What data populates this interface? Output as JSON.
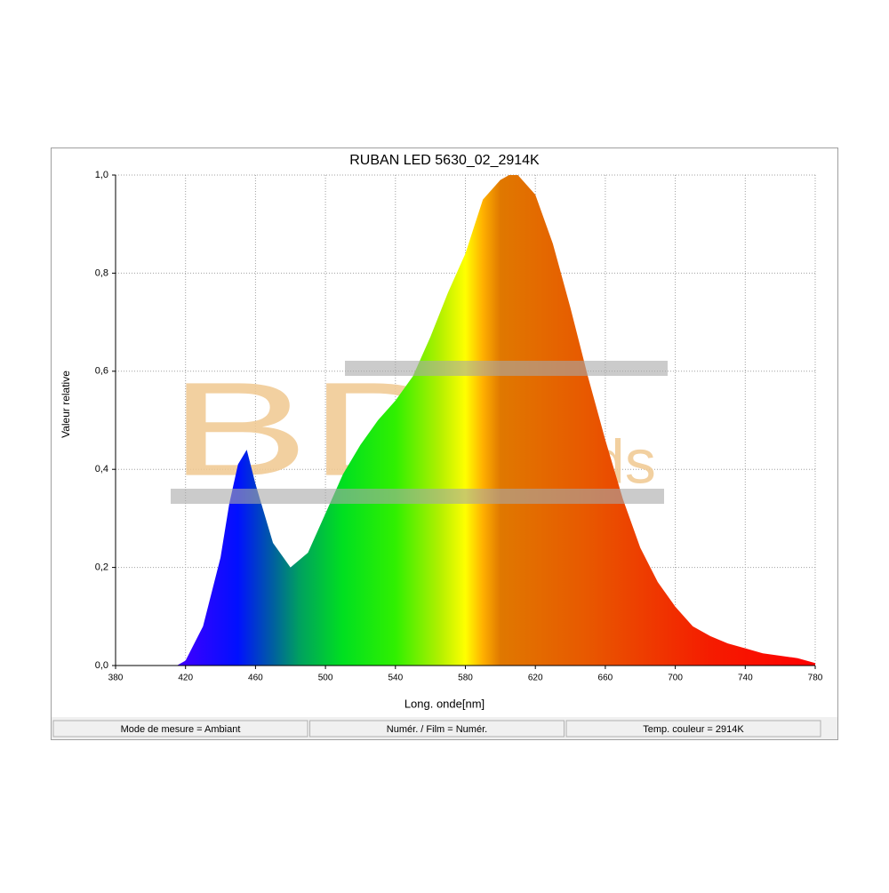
{
  "chart_data": {
    "type": "area",
    "title": "RUBAN LED 5630_02_2914K",
    "xlabel": "Long. onde[nm]",
    "ylabel": "Valeur relative",
    "x": [
      380,
      390,
      400,
      410,
      415,
      420,
      430,
      440,
      445,
      450,
      455,
      460,
      470,
      480,
      490,
      500,
      510,
      520,
      530,
      540,
      550,
      560,
      570,
      580,
      590,
      600,
      605,
      610,
      620,
      630,
      640,
      650,
      660,
      670,
      680,
      690,
      700,
      710,
      720,
      730,
      740,
      750,
      760,
      770,
      780
    ],
    "values": [
      0,
      0,
      0,
      0,
      0,
      0.01,
      0.08,
      0.22,
      0.33,
      0.41,
      0.44,
      0.37,
      0.25,
      0.2,
      0.23,
      0.31,
      0.39,
      0.45,
      0.5,
      0.54,
      0.59,
      0.67,
      0.76,
      0.84,
      0.95,
      0.99,
      1.0,
      1.0,
      0.96,
      0.86,
      0.73,
      0.59,
      0.46,
      0.34,
      0.24,
      0.17,
      0.12,
      0.08,
      0.06,
      0.045,
      0.035,
      0.025,
      0.02,
      0.015,
      0.005
    ],
    "gradient": [
      {
        "x": 420,
        "color": "#3a00ff"
      },
      {
        "x": 450,
        "color": "#0010ff"
      },
      {
        "x": 470,
        "color": "#005fa0"
      },
      {
        "x": 485,
        "color": "#00a060"
      },
      {
        "x": 510,
        "color": "#00e020"
      },
      {
        "x": 540,
        "color": "#30f000"
      },
      {
        "x": 565,
        "color": "#b0f000"
      },
      {
        "x": 580,
        "color": "#ffff00"
      },
      {
        "x": 590,
        "color": "#ffb000"
      },
      {
        "x": 600,
        "color": "#e07800"
      },
      {
        "x": 650,
        "color": "#e85800"
      },
      {
        "x": 720,
        "color": "#f51c00"
      },
      {
        "x": 780,
        "color": "#ff0000"
      }
    ],
    "xlim": [
      380,
      780
    ],
    "ylim": [
      0,
      1
    ],
    "xticks": [
      380,
      420,
      460,
      500,
      540,
      580,
      620,
      660,
      700,
      740,
      780
    ],
    "yticks": [
      {
        "value": 0,
        "label": "0,0"
      },
      {
        "value": 0.2,
        "label": "0,2"
      },
      {
        "value": 0.4,
        "label": "0,4"
      },
      {
        "value": 0.6,
        "label": "0,6"
      },
      {
        "value": 0.8,
        "label": "0,8"
      },
      {
        "value": 1,
        "label": "1,0"
      }
    ],
    "grid": true,
    "watermark": [
      "BDL",
      "eds"
    ],
    "status": [
      "Mode de mesure = Ambiant",
      "Numér. / Film = Numér.",
      "Temp. couleur = 2914K"
    ]
  }
}
